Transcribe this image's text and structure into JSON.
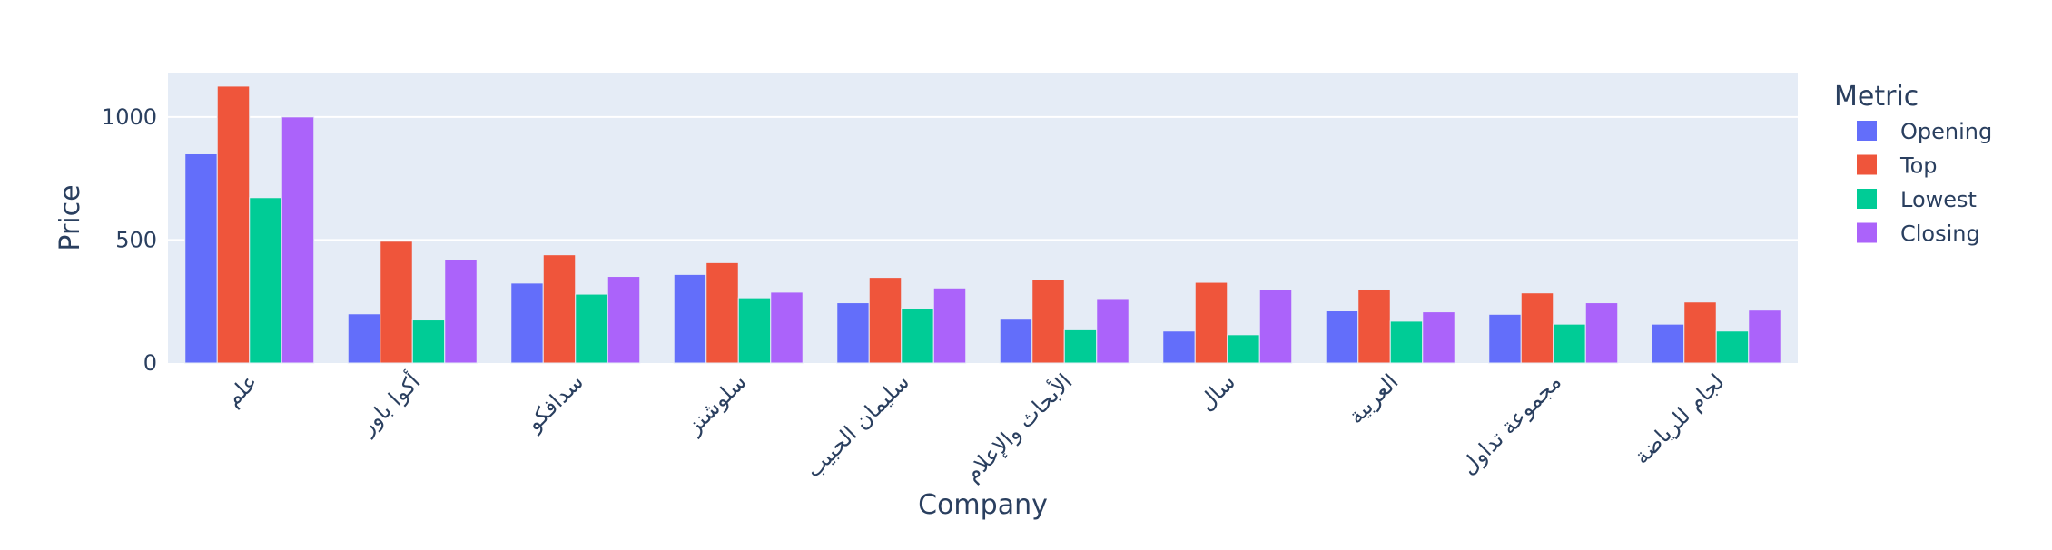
{
  "chart_data": {
    "type": "bar",
    "xlabel": "Company",
    "ylabel": "Price",
    "ylim": [
      0,
      1180
    ],
    "yticks": [
      0,
      500,
      1000
    ],
    "grid": true,
    "legend_title": "Metric",
    "legend_position": "right",
    "categories": [
      "علم",
      "أكوا باور",
      "سدافكو",
      "سلوشنز",
      "سليمان الحبيب",
      "الأبحاث والإعلام",
      "سال",
      "العربية",
      "مجموعة تداول",
      "لجام للرياضة"
    ],
    "series": [
      {
        "name": "Opening",
        "color": "#636efa",
        "values": [
          850,
          200,
          325,
          360,
          245,
          178,
          130,
          212,
          198,
          158
        ]
      },
      {
        "name": "Top",
        "color": "#ef553b",
        "values": [
          1125,
          495,
          440,
          408,
          348,
          338,
          328,
          298,
          285,
          248
        ]
      },
      {
        "name": "Lowest",
        "color": "#00cc96",
        "values": [
          672,
          175,
          280,
          265,
          222,
          135,
          115,
          170,
          158,
          130
        ]
      },
      {
        "name": "Closing",
        "color": "#ab63fa",
        "values": [
          1000,
          422,
          352,
          288,
          305,
          262,
          300,
          208,
          245,
          215
        ]
      }
    ]
  }
}
